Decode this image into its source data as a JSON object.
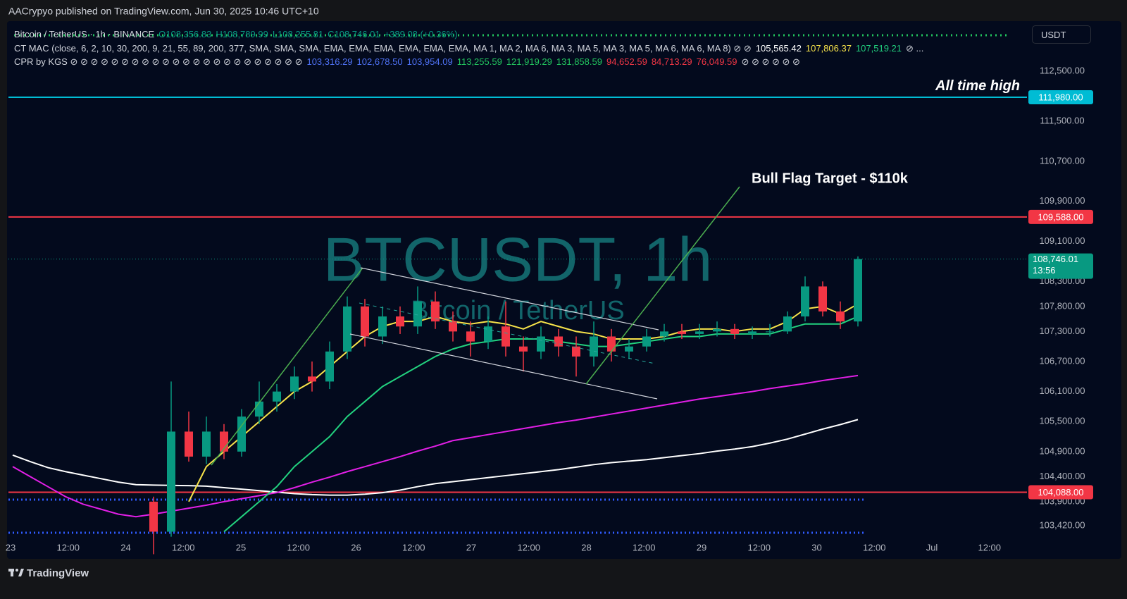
{
  "page": {
    "publisher": "AACrypyo published on TradingView.com, Jun 30, 2025 10:46 UTC+10",
    "currency": "USDT",
    "footer": "TradingView"
  },
  "legend": [
    [
      {
        "text": "Bitcoin / TetherUS · 1h · BINANCE",
        "color": "#d1d4dc"
      },
      {
        "text": "O108,356.83",
        "color": "#089981"
      },
      {
        "text": "H108,789.99",
        "color": "#089981"
      },
      {
        "text": "L108,255.81",
        "color": "#089981"
      },
      {
        "text": "C108,746.01",
        "color": "#089981"
      },
      {
        "text": "+389.08 (+0.36%)",
        "color": "#089981"
      }
    ],
    [
      {
        "text": "CT MAC (close, 6, 2, 10, 30, 200, 9, 21, 55, 89, 200, 377, SMA, SMA, SMA, EMA, EMA, EMA, EMA, EMA, EMA, MA 1, MA 2, MA 6, MA 3, MA 5, MA 3, MA 5, MA 6, MA 6, MA 8)  ⊘  ⊘",
        "color": "#d1d4dc"
      },
      {
        "text": "105,565.42",
        "color": "#ffffff"
      },
      {
        "text": "107,806.37",
        "color": "#f7e34a"
      },
      {
        "text": "107,519.21",
        "color": "#22d27f"
      },
      {
        "text": "⊘ ...",
        "color": "#d1d4dc"
      }
    ],
    [
      {
        "text": "CPR by KGS  ⊘ ⊘ ⊘ ⊘ ⊘ ⊘ ⊘ ⊘ ⊘ ⊘ ⊘ ⊘ ⊘ ⊘ ⊘ ⊘ ⊘ ⊘ ⊘ ⊘ ⊘ ⊘ ⊘",
        "color": "#d1d4dc"
      },
      {
        "text": "103,316.29",
        "color": "#4f72f5"
      },
      {
        "text": "102,678.50",
        "color": "#4f72f5"
      },
      {
        "text": "103,954.09",
        "color": "#4f72f5"
      },
      {
        "text": "113,255.59",
        "color": "#22c55e"
      },
      {
        "text": "121,919.29",
        "color": "#22c55e"
      },
      {
        "text": "131,858.59",
        "color": "#22c55e"
      },
      {
        "text": "94,652.59",
        "color": "#f23645"
      },
      {
        "text": "84,713.29",
        "color": "#f23645"
      },
      {
        "text": "76,049.59",
        "color": "#f23645"
      },
      {
        "text": "⊘ ⊘ ⊘ ⊘ ⊘ ⊘",
        "color": "#d1d4dc"
      }
    ]
  ],
  "chart_data": {
    "type": "candlestick",
    "watermark": {
      "title": "BTCUSDT, 1h",
      "subtitle": "Bitcoin / TetherUS"
    },
    "annotation": "Bull Flag Target - $110k",
    "ylim": [
      102800,
      113500
    ],
    "yticks": [
      {
        "value": 112500,
        "label": "112,500.00"
      },
      {
        "value": 111500,
        "label": "111,500.00"
      },
      {
        "value": 110700,
        "label": "110,700.00"
      },
      {
        "value": 109900,
        "label": "109,900.00"
      },
      {
        "value": 109100,
        "label": "109,100.00"
      },
      {
        "value": 108300,
        "label": "108,300.00"
      },
      {
        "value": 107800,
        "label": "107,800.00"
      },
      {
        "value": 107300,
        "label": "107,300.00"
      },
      {
        "value": 106700,
        "label": "106,700.00"
      },
      {
        "value": 106100,
        "label": "106,100.00"
      },
      {
        "value": 105500,
        "label": "105,500.00"
      },
      {
        "value": 104900,
        "label": "104,900.00"
      },
      {
        "value": 104400,
        "label": "104,400.00"
      },
      {
        "value": 103900,
        "label": "103,900.00"
      },
      {
        "value": 103420,
        "label": "103,420.00"
      }
    ],
    "grid": false,
    "time_labels": [
      "23",
      "12:00",
      "24",
      "12:00",
      "25",
      "12:00",
      "26",
      "12:00",
      "27",
      "12:00",
      "28",
      "12:00",
      "29",
      "12:00",
      "30",
      "12:00",
      "Jul",
      "12:00"
    ],
    "up_color": "#089981",
    "down_color": "#f23645",
    "candles": {
      "open": [
        null,
        null,
        null,
        null,
        null,
        null,
        null,
        null,
        103900,
        103300,
        105300,
        104800,
        105300,
        104900,
        105600,
        105900,
        106100,
        106400,
        106300,
        106900,
        107800,
        107200,
        107600,
        107400,
        107900,
        107500,
        107300,
        107100,
        107400,
        107000,
        106900,
        107200,
        107000,
        106800,
        107200,
        106900,
        107000,
        107200,
        107300,
        107250,
        107300,
        107350,
        107250,
        107300,
        107300,
        107600,
        108200,
        107700,
        107500
      ],
      "high": [
        null,
        null,
        null,
        null,
        null,
        null,
        null,
        null,
        104000,
        106300,
        105700,
        105600,
        105450,
        105750,
        106300,
        106250,
        106600,
        106700,
        107100,
        108000,
        107950,
        107800,
        107800,
        108200,
        108100,
        107700,
        107500,
        107600,
        107900,
        107200,
        107400,
        107350,
        107200,
        107500,
        107350,
        107150,
        107350,
        107450,
        107450,
        107450,
        107500,
        107450,
        107400,
        107450,
        107700,
        108400,
        108300,
        107900,
        108800
      ],
      "low": [
        null,
        null,
        null,
        null,
        null,
        null,
        null,
        null,
        102850,
        103200,
        104700,
        104650,
        104750,
        104800,
        105450,
        105700,
        105950,
        106100,
        106150,
        106750,
        107000,
        107050,
        107250,
        107250,
        107350,
        107100,
        106800,
        106950,
        106800,
        106500,
        106750,
        106800,
        106400,
        106600,
        106700,
        106750,
        106900,
        107100,
        107150,
        107150,
        107200,
        107150,
        107150,
        107200,
        107250,
        107500,
        107600,
        107350,
        107400
      ],
      "close": [
        null,
        null,
        null,
        null,
        null,
        null,
        null,
        null,
        103300,
        105300,
        104800,
        105300,
        104900,
        105600,
        105900,
        106100,
        106400,
        106300,
        106900,
        107800,
        107200,
        107600,
        107400,
        107900,
        107500,
        107300,
        107100,
        107400,
        107000,
        106900,
        107200,
        107000,
        106800,
        107200,
        106900,
        107000,
        107200,
        107300,
        107250,
        107300,
        107350,
        107250,
        107300,
        107300,
        107600,
        108200,
        107700,
        107500,
        108746.01
      ]
    },
    "lines": [
      {
        "color": "#ffffff",
        "values": [
          104830,
          104700,
          104580,
          104500,
          104430,
          104360,
          104290,
          104240,
          104230,
          104225,
          104220,
          104210,
          104180,
          104150,
          104120,
          104090,
          104060,
          104040,
          104030,
          104030,
          104050,
          104080,
          104130,
          104200,
          104260,
          104300,
          104340,
          104380,
          104420,
          104460,
          104500,
          104540,
          104590,
          104640,
          104680,
          104710,
          104740,
          104780,
          104820,
          104860,
          104910,
          104950,
          105000,
          105070,
          105150,
          105250,
          105350,
          105440,
          105540
        ]
      },
      {
        "color": "#e21fe6",
        "values": [
          104600,
          104400,
          104200,
          104000,
          103850,
          103750,
          103650,
          103600,
          103650,
          103710,
          103770,
          103830,
          103900,
          103960,
          104020,
          104080,
          104180,
          104290,
          104390,
          104500,
          104600,
          104700,
          104800,
          104910,
          105010,
          105120,
          105180,
          105240,
          105300,
          105360,
          105420,
          105480,
          105530,
          105590,
          105650,
          105710,
          105770,
          105830,
          105890,
          105950,
          106000,
          106050,
          106100,
          106160,
          106210,
          106260,
          106320,
          106370,
          106420
        ]
      },
      {
        "color": "#22d27f",
        "values": [
          null,
          null,
          null,
          null,
          null,
          null,
          null,
          null,
          null,
          null,
          null,
          null,
          103300,
          103600,
          103900,
          104200,
          104600,
          104900,
          105200,
          105600,
          105900,
          106200,
          106400,
          106600,
          106800,
          106950,
          107050,
          107100,
          107150,
          107150,
          107150,
          107100,
          107050,
          107000,
          107000,
          107050,
          107100,
          107150,
          107200,
          107200,
          107250,
          107250,
          107250,
          107250,
          107350,
          107450,
          107450,
          107450,
          107600
        ]
      },
      {
        "color": "#f7e34a",
        "values": [
          null,
          null,
          null,
          null,
          null,
          null,
          null,
          null,
          null,
          null,
          103900,
          104600,
          104900,
          105200,
          105500,
          105800,
          106100,
          106300,
          106600,
          106900,
          107200,
          107400,
          107500,
          107500,
          107600,
          107500,
          107450,
          107500,
          107450,
          107350,
          107500,
          107400,
          107300,
          107250,
          107150,
          107150,
          107150,
          107200,
          107300,
          107350,
          107350,
          107300,
          107350,
          107350,
          107500,
          107750,
          107800,
          107650,
          107850
        ]
      }
    ],
    "levels": [
      {
        "value": 111980,
        "label": "111,980.00",
        "color": "#00bcd4",
        "note": "All time high"
      },
      {
        "value": 109588,
        "label": "109,588.00",
        "color": "#f23645"
      },
      {
        "value": 104088,
        "label": "104,088.00",
        "color": "#f23645"
      },
      {
        "value": 103941,
        "color": "#2f5bff",
        "style": "dotted"
      },
      {
        "value": 103279,
        "color": "#2f5bff",
        "style": "dotted"
      }
    ],
    "last_price": {
      "value": 108746.01,
      "label": "108,746.01",
      "countdown": "13:56",
      "color": "#089981"
    }
  }
}
